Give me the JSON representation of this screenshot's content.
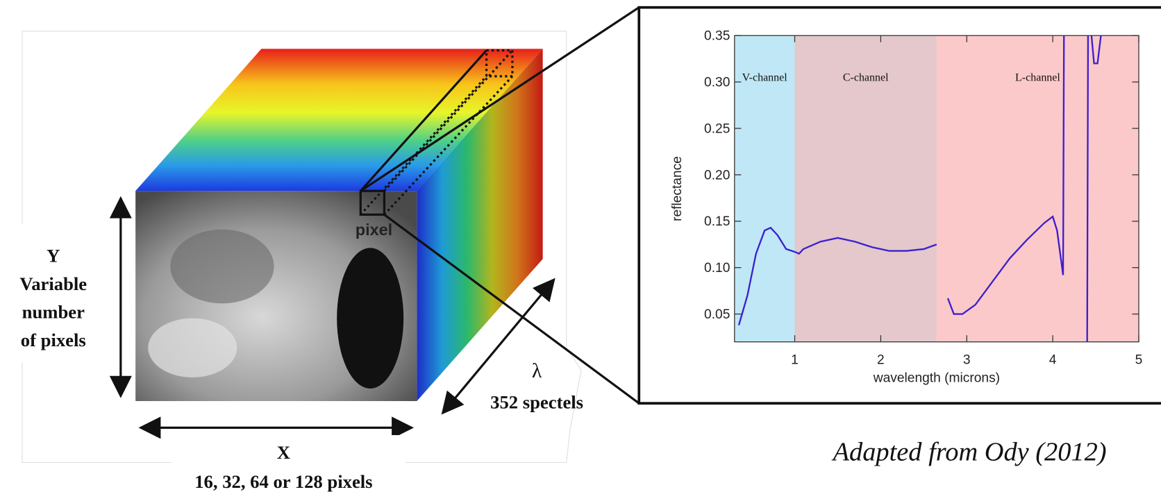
{
  "chart_data": {
    "type": "line",
    "ylabel": "reflectance",
    "xlabel": "wavelength (microns)",
    "xlim": [
      0.3,
      5.0
    ],
    "ylim": [
      0.02,
      0.35
    ],
    "xticks": [
      1,
      2,
      3,
      4,
      5
    ],
    "yticks": [
      0.05,
      {
        "value": 0.1,
        "label": "0.10"
      },
      0.15,
      {
        "value": 0.2,
        "label": "0.20"
      },
      0.25,
      {
        "value": 0.3,
        "label": "0.30"
      },
      0.35
    ],
    "bands": [
      {
        "label": "V-channel",
        "start": 0.3,
        "end": 1.0,
        "color": "#bfe7f6"
      },
      {
        "label": "C-channel",
        "start": 1.0,
        "end": 2.65,
        "color": "#e4c8cb"
      },
      {
        "label": "L-channel",
        "start": 2.65,
        "end": 5.0,
        "color": "#fcc9ca"
      }
    ],
    "x": [
      0.35,
      0.45,
      0.55,
      0.65,
      0.72,
      0.8,
      0.9,
      1.0,
      1.05,
      1.1,
      1.3,
      1.5,
      1.7,
      1.9,
      2.1,
      2.3,
      2.5,
      2.65,
      null,
      2.78,
      2.85,
      2.95,
      3.1,
      3.3,
      3.5,
      3.7,
      3.9,
      4.0,
      4.05,
      4.12,
      4.13,
      null,
      4.4,
      4.41,
      null,
      4.45,
      4.48,
      4.52,
      4.56
    ],
    "series": [
      {
        "color": "#3b20d0",
        "values": [
          0.038,
          0.07,
          0.115,
          0.14,
          0.143,
          0.135,
          0.12,
          0.117,
          0.115,
          0.12,
          0.128,
          0.132,
          0.128,
          0.122,
          0.118,
          0.118,
          0.12,
          0.125,
          null,
          0.067,
          0.05,
          0.05,
          0.06,
          0.085,
          0.11,
          0.13,
          0.148,
          0.155,
          0.14,
          0.092,
          0.35,
          null,
          0.02,
          0.35,
          null,
          0.35,
          0.32,
          0.32,
          0.35
        ]
      }
    ]
  },
  "diagram": {
    "pixel": "pixel",
    "y_title": "Y",
    "y_text": [
      "Variable",
      "number",
      "of pixels"
    ],
    "x_title": "X",
    "x_text": "16, 32, 64 or 128 pixels",
    "lambda": "λ",
    "spectels": "352 spectels",
    "credit": "Adapted from Ody (2012)"
  }
}
